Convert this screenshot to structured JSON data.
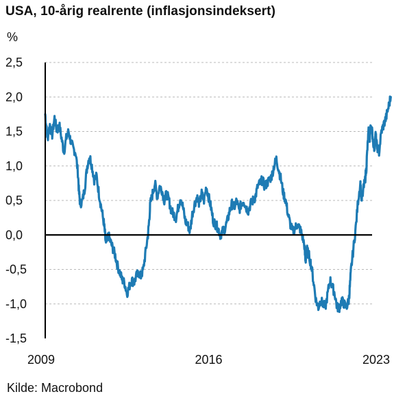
{
  "title": "USA, 10-årig realrente (inflasjonsindeksert)",
  "unit_label": "%",
  "source": "Kilde: Macrobond",
  "colors": {
    "series": "#1e7bb4",
    "zero_line": "#000000",
    "grid": "#b8b8b8",
    "axis": "#000000"
  },
  "chart_data": {
    "type": "line",
    "title": "USA, 10-årig realrente (inflasjonsindeksert)",
    "ylabel": "%",
    "xlabel": "",
    "xlim": [
      2009.0,
      2023.0
    ],
    "ylim": [
      -1.5,
      2.5
    ],
    "y_ticks": [
      2.5,
      2.0,
      1.5,
      1.0,
      0.5,
      0.0,
      -0.5,
      -1.0,
      -1.5
    ],
    "y_tick_labels": [
      "2,5",
      "2,0",
      "1,5",
      "1,0",
      "0,5",
      "0,0",
      "-0,5",
      "-1,0",
      "-1,5"
    ],
    "x_ticks": [
      2009,
      2016,
      2023
    ],
    "x_tick_labels": [
      "2009",
      "2016",
      "2023"
    ],
    "grid": "horizontal dashed",
    "series": [
      {
        "points": [
          [
            2009.0,
            1.75
          ],
          [
            2009.05,
            1.55
          ],
          [
            2009.1,
            1.4
          ],
          [
            2009.2,
            1.6
          ],
          [
            2009.3,
            1.45
          ],
          [
            2009.4,
            1.7
          ],
          [
            2009.5,
            1.5
          ],
          [
            2009.6,
            1.6
          ],
          [
            2009.7,
            1.4
          ],
          [
            2009.8,
            1.2
          ],
          [
            2009.9,
            1.4
          ],
          [
            2010.0,
            1.5
          ],
          [
            2010.1,
            1.35
          ],
          [
            2010.2,
            1.25
          ],
          [
            2010.3,
            1.2
          ],
          [
            2010.4,
            0.9
          ],
          [
            2010.45,
            0.6
          ],
          [
            2010.5,
            0.45
          ],
          [
            2010.6,
            0.5
          ],
          [
            2010.7,
            0.7
          ],
          [
            2010.8,
            1.0
          ],
          [
            2010.9,
            1.15
          ],
          [
            2011.0,
            1.0
          ],
          [
            2011.1,
            0.8
          ],
          [
            2011.2,
            0.85
          ],
          [
            2011.3,
            0.6
          ],
          [
            2011.4,
            0.4
          ],
          [
            2011.5,
            0.2
          ],
          [
            2011.55,
            0.05
          ],
          [
            2011.6,
            -0.15
          ],
          [
            2011.7,
            0.0
          ],
          [
            2011.8,
            -0.1
          ],
          [
            2011.9,
            -0.2
          ],
          [
            2012.0,
            -0.3
          ],
          [
            2012.1,
            -0.45
          ],
          [
            2012.2,
            -0.55
          ],
          [
            2012.3,
            -0.65
          ],
          [
            2012.4,
            -0.7
          ],
          [
            2012.5,
            -0.85
          ],
          [
            2012.6,
            -0.75
          ],
          [
            2012.7,
            -0.65
          ],
          [
            2012.8,
            -0.7
          ],
          [
            2012.9,
            -0.6
          ],
          [
            2013.0,
            -0.55
          ],
          [
            2013.1,
            -0.6
          ],
          [
            2013.2,
            -0.5
          ],
          [
            2013.3,
            -0.25
          ],
          [
            2013.4,
            0.0
          ],
          [
            2013.45,
            0.2
          ],
          [
            2013.5,
            0.45
          ],
          [
            2013.6,
            0.6
          ],
          [
            2013.7,
            0.75
          ],
          [
            2013.8,
            0.55
          ],
          [
            2013.9,
            0.7
          ],
          [
            2014.0,
            0.65
          ],
          [
            2014.1,
            0.5
          ],
          [
            2014.2,
            0.6
          ],
          [
            2014.3,
            0.5
          ],
          [
            2014.4,
            0.35
          ],
          [
            2014.5,
            0.3
          ],
          [
            2014.6,
            0.25
          ],
          [
            2014.7,
            0.4
          ],
          [
            2014.8,
            0.55
          ],
          [
            2014.9,
            0.4
          ],
          [
            2015.0,
            0.2
          ],
          [
            2015.1,
            0.15
          ],
          [
            2015.2,
            0.05
          ],
          [
            2015.3,
            0.3
          ],
          [
            2015.4,
            0.45
          ],
          [
            2015.5,
            0.55
          ],
          [
            2015.6,
            0.45
          ],
          [
            2015.7,
            0.6
          ],
          [
            2015.8,
            0.5
          ],
          [
            2015.9,
            0.7
          ],
          [
            2016.0,
            0.55
          ],
          [
            2016.1,
            0.4
          ],
          [
            2016.2,
            0.2
          ],
          [
            2016.3,
            0.15
          ],
          [
            2016.4,
            0.1
          ],
          [
            2016.5,
            0.0
          ],
          [
            2016.6,
            0.05
          ],
          [
            2016.7,
            0.1
          ],
          [
            2016.8,
            0.2
          ],
          [
            2016.9,
            0.35
          ],
          [
            2017.0,
            0.45
          ],
          [
            2017.1,
            0.4
          ],
          [
            2017.2,
            0.5
          ],
          [
            2017.3,
            0.35
          ],
          [
            2017.4,
            0.45
          ],
          [
            2017.5,
            0.5
          ],
          [
            2017.6,
            0.4
          ],
          [
            2017.7,
            0.35
          ],
          [
            2017.8,
            0.45
          ],
          [
            2017.9,
            0.5
          ],
          [
            2018.0,
            0.55
          ],
          [
            2018.1,
            0.7
          ],
          [
            2018.2,
            0.75
          ],
          [
            2018.3,
            0.8
          ],
          [
            2018.4,
            0.7
          ],
          [
            2018.5,
            0.75
          ],
          [
            2018.6,
            0.8
          ],
          [
            2018.7,
            0.85
          ],
          [
            2018.8,
            1.0
          ],
          [
            2018.9,
            1.1
          ],
          [
            2019.0,
            0.95
          ],
          [
            2019.1,
            0.8
          ],
          [
            2019.2,
            0.6
          ],
          [
            2019.3,
            0.5
          ],
          [
            2019.4,
            0.3
          ],
          [
            2019.5,
            0.15
          ],
          [
            2019.6,
            0.05
          ],
          [
            2019.7,
            0.1
          ],
          [
            2019.8,
            0.15
          ],
          [
            2019.9,
            0.1
          ],
          [
            2020.0,
            0.0
          ],
          [
            2020.1,
            -0.15
          ],
          [
            2020.15,
            -0.4
          ],
          [
            2020.2,
            -0.2
          ],
          [
            2020.3,
            -0.3
          ],
          [
            2020.4,
            -0.45
          ],
          [
            2020.5,
            -0.7
          ],
          [
            2020.6,
            -0.95
          ],
          [
            2020.7,
            -1.05
          ],
          [
            2020.8,
            -0.95
          ],
          [
            2020.9,
            -1.0
          ],
          [
            2021.0,
            -1.05
          ],
          [
            2021.1,
            -0.85
          ],
          [
            2021.2,
            -0.65
          ],
          [
            2021.3,
            -0.75
          ],
          [
            2021.4,
            -0.85
          ],
          [
            2021.5,
            -1.05
          ],
          [
            2021.6,
            -1.05
          ],
          [
            2021.7,
            -0.95
          ],
          [
            2021.8,
            -1.0
          ],
          [
            2021.9,
            -1.05
          ],
          [
            2022.0,
            -0.95
          ],
          [
            2022.05,
            -0.75
          ],
          [
            2022.1,
            -0.5
          ],
          [
            2022.2,
            -0.2
          ],
          [
            2022.3,
            0.1
          ],
          [
            2022.4,
            0.5
          ],
          [
            2022.5,
            0.75
          ],
          [
            2022.55,
            0.5
          ],
          [
            2022.6,
            0.6
          ],
          [
            2022.7,
            0.8
          ],
          [
            2022.75,
            0.95
          ],
          [
            2022.8,
            1.25
          ],
          [
            2022.85,
            1.5
          ],
          [
            2022.9,
            1.4
          ],
          [
            2022.95,
            1.6
          ],
          [
            2023.0,
            1.5
          ],
          [
            2023.05,
            1.35
          ],
          [
            2023.1,
            1.25
          ],
          [
            2023.15,
            1.45
          ],
          [
            2023.2,
            1.3
          ],
          [
            2023.3,
            1.2
          ],
          [
            2023.4,
            1.5
          ],
          [
            2023.5,
            1.6
          ],
          [
            2023.6,
            1.7
          ],
          [
            2023.7,
            1.85
          ],
          [
            2023.8,
            2.0
          ]
        ]
      }
    ]
  }
}
